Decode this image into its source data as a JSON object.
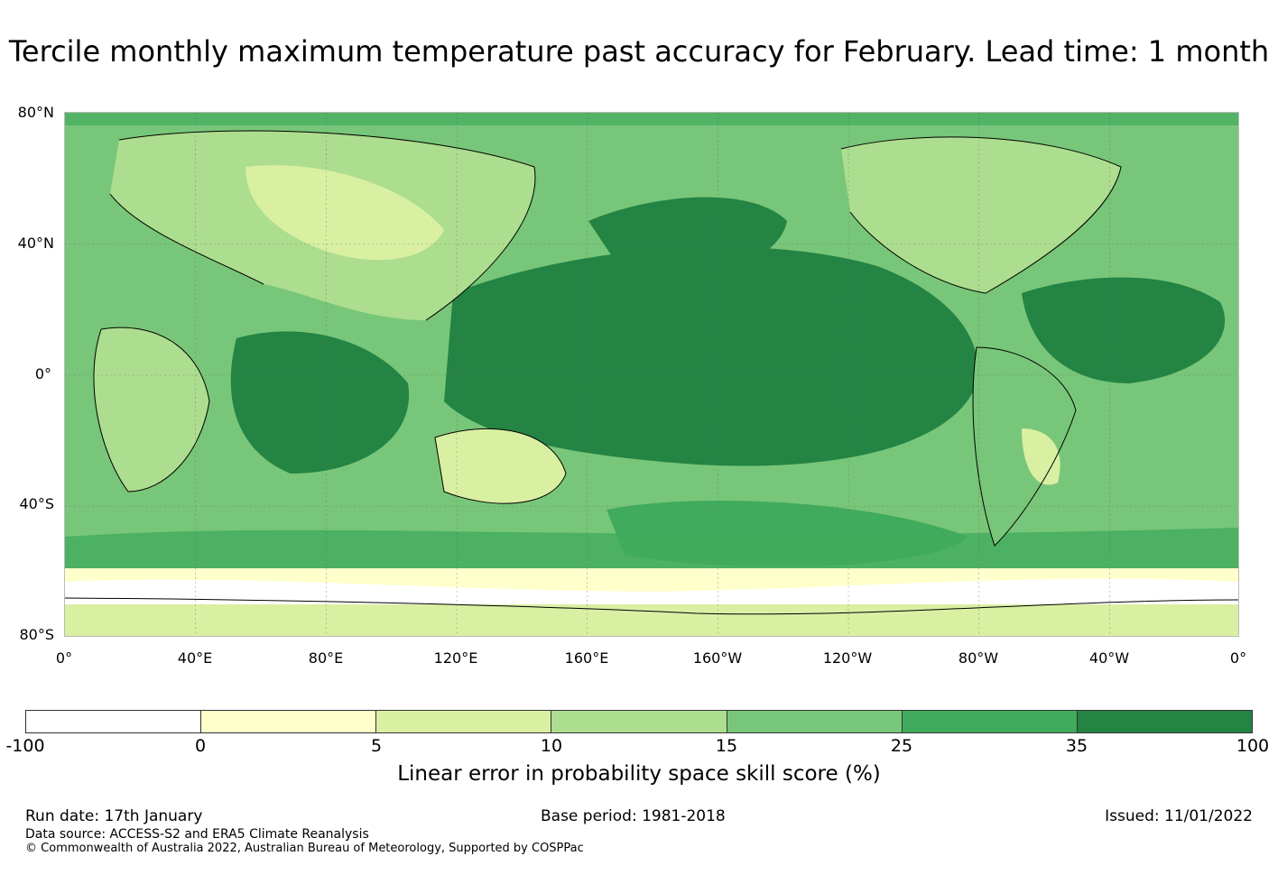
{
  "title": "Tercile monthly maximum temperature past accuracy for February. Lead time: 1 month",
  "map": {
    "lat_labels": [
      "80°N",
      "40°N",
      "0°",
      "40°S",
      "80°S"
    ],
    "lon_labels": [
      "0°",
      "40°E",
      "80°E",
      "120°E",
      "160°E",
      "160°W",
      "120°W",
      "80°W",
      "40°W",
      "0°"
    ],
    "lat_range": [
      -80,
      80
    ],
    "lon_range": [
      0,
      360
    ],
    "fill_colors": {
      "below_0": "#ffffff",
      "0_5": "#ffffcc",
      "5_10": "#d9f0a3",
      "10_15": "#addd8e",
      "15_25": "#78c679",
      "25_35": "#41ab5d",
      "35_100": "#238443"
    }
  },
  "colorbar": {
    "ticks": [
      "-100",
      "0",
      "5",
      "10",
      "15",
      "25",
      "35",
      "100"
    ],
    "colors": [
      "#ffffff",
      "#ffffcc",
      "#d9f0a3",
      "#addd8e",
      "#78c679",
      "#41ab5d",
      "#238443"
    ],
    "label": "Linear error in probability space skill score (%)"
  },
  "footer": {
    "run_date": "Run date: 17th January",
    "base_period": "Base period: 1981-2018",
    "issued": "Issued: 11/01/2022",
    "data_source": "Data source: ACCESS-S2 and ERA5 Climate Reanalysis",
    "copyright": "© Commonwealth of Australia 2022, Australian Bureau of Meteorology, Supported by COSPPac"
  }
}
